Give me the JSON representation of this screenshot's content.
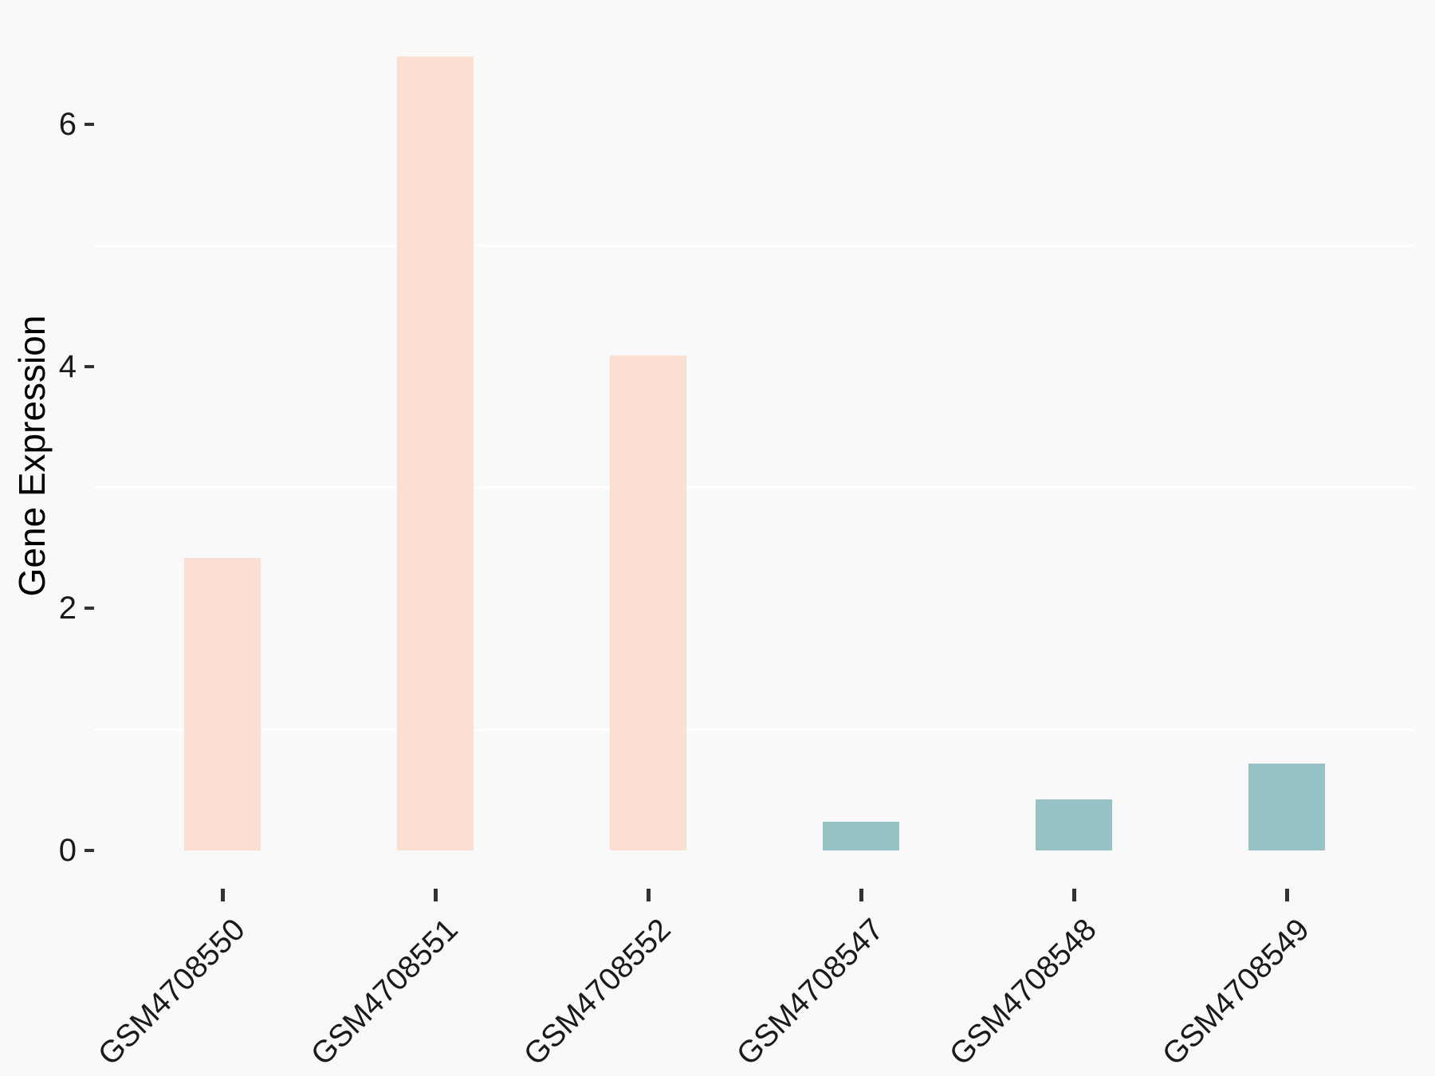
{
  "figure": {
    "background_color": "#f9f9f9",
    "gridline_color": "#ffffff",
    "tick_color": "#333333",
    "tick_label_color": "#1a1a1a",
    "axis_title_color": "#000000"
  },
  "chart_data": {
    "type": "bar",
    "title": "",
    "xlabel": "",
    "ylabel": "Gene Expression",
    "categories": [
      "GSM4708550",
      "GSM4708551",
      "GSM4708552",
      "GSM4708547",
      "GSM4708548",
      "GSM4708549"
    ],
    "values": [
      2.42,
      6.56,
      4.09,
      0.24,
      0.42,
      0.72
    ],
    "bar_colors": [
      "#fcdfd3",
      "#fcdfd3",
      "#fcdfd3",
      "#98c3c6",
      "#98c3c6",
      "#98c3c6"
    ],
    "yticks": [
      0,
      2,
      4,
      6
    ],
    "minor_gridlines": [
      1,
      3,
      5
    ],
    "ylim": [
      0,
      6.9
    ],
    "grid": "minor-horizontal-only",
    "legend": "none",
    "x_tick_label_angle": 45
  }
}
